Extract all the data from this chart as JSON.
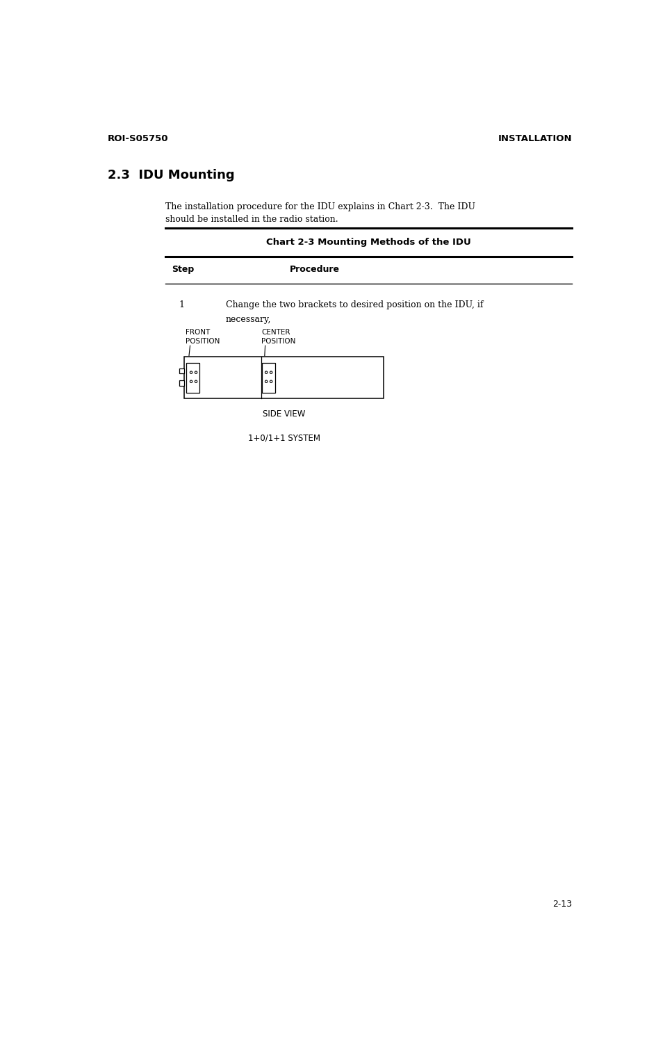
{
  "page_width": 9.45,
  "page_height": 14.93,
  "bg_color": "#ffffff",
  "header_left": "ROI-S05750",
  "header_right": "INSTALLATION",
  "section_title": "2.3  IDU Mounting",
  "body_text_line1": "The installation procedure for the IDU explains in Chart 2-3.  The IDU",
  "body_text_line2": "should be installed in the radio station.",
  "chart_title": "Chart 2-3 Mounting Methods of the IDU",
  "col_step": "Step",
  "col_procedure": "Procedure",
  "step_num": "1",
  "step_text_line1": "Change the two brackets to desired position on the IDU, if",
  "step_text_line2": "necessary,",
  "label_front_line1": "FRONT",
  "label_front_line2": "POSITION",
  "label_center_line1": "CENTER",
  "label_center_line2": "POSITION",
  "side_view_label": "SIDE VIEW",
  "system_label": "1+0/1+1 SYSTEM",
  "footer_page": "2-13",
  "text_color": "#000000",
  "line_color": "#000000"
}
